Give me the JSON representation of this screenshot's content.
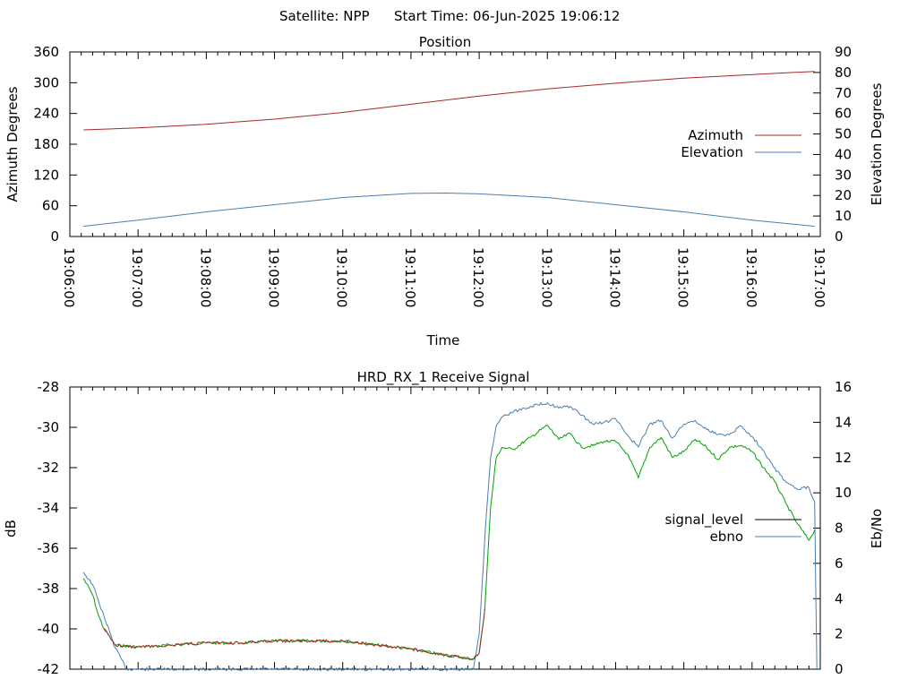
{
  "header": {
    "satellite_label": "Satellite: NPP",
    "start_time_label": "Start Time: 06-Jun-2025 19:06:12"
  },
  "colors": {
    "azimuth": "#a52a2a",
    "elevation": "#4a7fb0",
    "signal_level": "#a52a2a",
    "ebno": "#00a000",
    "legend_signal_level": "#000000",
    "legend_ebno": "#4a7fb0",
    "signal_overlay": "#4a7fb0"
  },
  "chart_data": [
    {
      "type": "line",
      "title": "Position",
      "xlabel": "Time",
      "ylabel": "Azimuth Degrees",
      "y2label": "Elevation Degrees",
      "x_ticks": [
        "19:06:00",
        "19:07:00",
        "19:08:00",
        "19:09:00",
        "19:10:00",
        "19:11:00",
        "19:12:00",
        "19:13:00",
        "19:14:00",
        "19:15:00",
        "19:16:00",
        "19:17:00"
      ],
      "xlim": [
        "19:06:00",
        "19:17:00"
      ],
      "ylim": [
        0,
        360
      ],
      "y_ticks": [
        0,
        60,
        120,
        180,
        240,
        300,
        360
      ],
      "y2lim": [
        0,
        90
      ],
      "y2_ticks": [
        0,
        10,
        20,
        30,
        40,
        50,
        60,
        70,
        80,
        90
      ],
      "legend_position": "right",
      "grid": false,
      "series": [
        {
          "name": "Azimuth",
          "axis": "y",
          "x": [
            "19:06:12",
            "19:07:00",
            "19:08:00",
            "19:09:00",
            "19:10:00",
            "19:11:00",
            "19:12:00",
            "19:13:00",
            "19:14:00",
            "19:15:00",
            "19:16:00",
            "19:16:55"
          ],
          "values": [
            208,
            212,
            219,
            229,
            242,
            258,
            274,
            288,
            299,
            309,
            316,
            322
          ]
        },
        {
          "name": "Elevation",
          "axis": "y2",
          "x": [
            "19:06:12",
            "19:07:00",
            "19:08:00",
            "19:09:00",
            "19:10:00",
            "19:11:00",
            "19:11:30",
            "19:12:00",
            "19:13:00",
            "19:14:00",
            "19:15:00",
            "19:16:00",
            "19:16:55"
          ],
          "values": [
            5,
            8,
            12,
            15.5,
            19,
            21,
            21.2,
            20.8,
            19,
            15.5,
            12,
            8,
            5
          ]
        }
      ]
    },
    {
      "type": "line",
      "title": "HRD_RX_1 Receive Signal",
      "ylabel": "dB",
      "y2label": "Eb/No",
      "xlim": [
        "19:06:00",
        "19:17:00"
      ],
      "ylim": [
        -42,
        -28
      ],
      "y_ticks": [
        -42,
        -40,
        -38,
        -36,
        -34,
        -32,
        -30,
        -28
      ],
      "y2lim": [
        0,
        16
      ],
      "y2_ticks": [
        0,
        2,
        4,
        6,
        8,
        10,
        12,
        14,
        16
      ],
      "legend_position": "right",
      "grid": false,
      "series": [
        {
          "name": "signal_level",
          "axis": "y",
          "x": [
            "19:06:12",
            "19:06:20",
            "19:06:25",
            "19:06:30",
            "19:06:40",
            "19:07:00",
            "19:07:30",
            "19:08:00",
            "19:08:30",
            "19:09:00",
            "19:09:30",
            "19:10:00",
            "19:10:30",
            "19:11:00",
            "19:11:30",
            "19:11:55",
            "19:12:00",
            "19:12:05",
            "19:12:10",
            "19:12:15",
            "19:12:20",
            "19:12:30",
            "19:12:45",
            "19:13:00",
            "19:13:10",
            "19:13:20",
            "19:13:30",
            "19:13:40",
            "19:13:50",
            "19:14:00",
            "19:14:10",
            "19:14:20",
            "19:14:30",
            "19:14:40",
            "19:14:50",
            "19:15:00",
            "19:15:10",
            "19:15:20",
            "19:15:30",
            "19:15:40",
            "19:15:50",
            "19:16:00",
            "19:16:10",
            "19:16:20",
            "19:16:30",
            "19:16:40",
            "19:16:50",
            "19:16:55"
          ],
          "values": [
            -37.5,
            -38.3,
            -39.3,
            -40.0,
            -40.8,
            -40.9,
            -40.8,
            -40.7,
            -40.7,
            -40.6,
            -40.6,
            -40.6,
            -40.8,
            -41.0,
            -41.3,
            -41.5,
            -41.2,
            -39.0,
            -34.0,
            -31.5,
            -31.0,
            -31.1,
            -30.5,
            -29.9,
            -30.6,
            -30.3,
            -31.0,
            -30.9,
            -30.7,
            -30.7,
            -31.3,
            -32.5,
            -31.0,
            -30.5,
            -31.5,
            -31.2,
            -30.6,
            -31.0,
            -31.6,
            -31.0,
            -30.9,
            -31.2,
            -32.0,
            -32.7,
            -33.8,
            -34.8,
            -35.6,
            -35.1
          ]
        },
        {
          "name": "ebno",
          "axis": "y2",
          "x": [
            "19:06:12",
            "19:06:20",
            "19:06:30",
            "19:06:40",
            "19:06:50",
            "19:11:55",
            "19:12:00",
            "19:12:05",
            "19:12:10",
            "19:12:15",
            "19:12:20",
            "19:12:30",
            "19:12:45",
            "19:13:00",
            "19:13:10",
            "19:13:20",
            "19:13:30",
            "19:13:40",
            "19:13:50",
            "19:14:00",
            "19:14:10",
            "19:14:20",
            "19:14:30",
            "19:14:40",
            "19:14:50",
            "19:15:00",
            "19:15:10",
            "19:15:20",
            "19:15:30",
            "19:15:40",
            "19:15:50",
            "19:16:00",
            "19:16:10",
            "19:16:20",
            "19:16:30",
            "19:16:40",
            "19:16:50",
            "19:16:55",
            "19:16:57"
          ],
          "values": [
            5.5,
            4.8,
            3.0,
            1.2,
            0.0,
            0.0,
            2.0,
            7.5,
            12.0,
            13.8,
            14.3,
            14.6,
            14.9,
            15.1,
            14.8,
            14.9,
            14.4,
            13.9,
            14.0,
            14.2,
            13.3,
            12.6,
            13.9,
            14.1,
            13.1,
            13.9,
            14.1,
            13.6,
            13.3,
            13.3,
            13.8,
            13.2,
            12.4,
            11.4,
            10.6,
            10.2,
            10.3,
            9.5,
            0.0
          ]
        }
      ]
    }
  ]
}
